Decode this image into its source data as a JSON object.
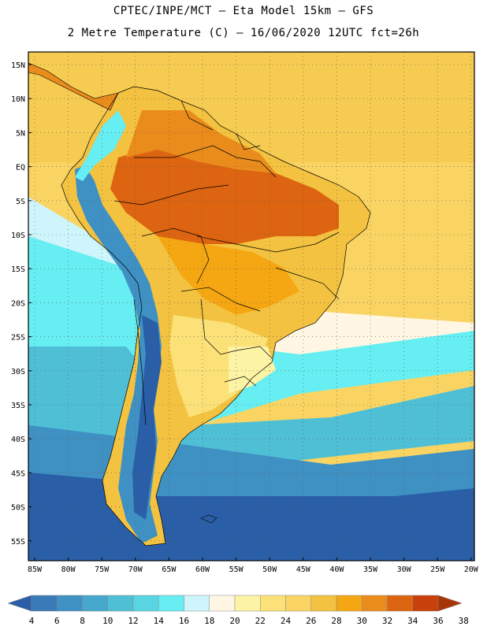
{
  "title": {
    "line1": "CPTEC/INPE/MCT –  Eta Model 15km – GFS",
    "line2": "2 Metre Temperature (C) – 16/06/2020 12UTC fct=26h"
  },
  "map": {
    "variable": "2 Metre Temperature",
    "unit": "C",
    "lat_ticks": [
      "15N",
      "10N",
      "5N",
      "EQ",
      "5S",
      "10S",
      "15S",
      "20S",
      "25S",
      "30S",
      "35S",
      "40S",
      "45S",
      "50S",
      "55S"
    ],
    "lon_ticks": [
      "85W",
      "80W",
      "75W",
      "70W",
      "65W",
      "60W",
      "55W",
      "50W",
      "45W",
      "40W",
      "35W",
      "30W",
      "25W",
      "20W"
    ],
    "grid": true,
    "border_color": "#000000"
  },
  "legend": {
    "labels": [
      "4",
      "6",
      "8",
      "10",
      "12",
      "14",
      "16",
      "18",
      "20",
      "22",
      "24",
      "26",
      "28",
      "30",
      "32",
      "34",
      "36",
      "38"
    ],
    "colors": [
      "#2a5fa8",
      "#3a7ab8",
      "#3f91c3",
      "#47a8cd",
      "#4fbfd6",
      "#58d4e3",
      "#66eef3",
      "#cdf5fb",
      "#fff7e3",
      "#fcf3a4",
      "#fbe178",
      "#f9d463",
      "#f3c240",
      "#f4a712",
      "#ea8c1c",
      "#dd6410",
      "#c8400a",
      "#a83508"
    ]
  }
}
